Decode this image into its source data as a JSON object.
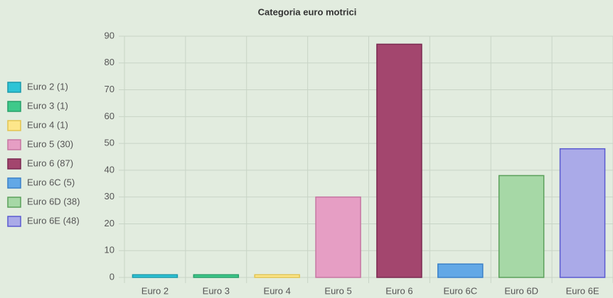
{
  "chart_data": {
    "type": "bar",
    "title": "Categoria euro motrici",
    "categories": [
      "Euro 2",
      "Euro 3",
      "Euro 4",
      "Euro 5",
      "Euro 6",
      "Euro 6C",
      "Euro 6D",
      "Euro 6E"
    ],
    "values": [
      1,
      1,
      1,
      30,
      87,
      5,
      38,
      48
    ],
    "legend_labels": [
      "Euro 2 (1)",
      "Euro 3 (1)",
      "Euro 4 (1)",
      "Euro 5 (30)",
      "Euro 6 (87)",
      "Euro 6C (5)",
      "Euro 6D (38)",
      "Euro 6E (48)"
    ],
    "colors": [
      "#2ec4d6",
      "#3ec98a",
      "#fde68a",
      "#e69ec4",
      "#a3466e",
      "#62a8e6",
      "#a6d8a6",
      "#aaaae8"
    ],
    "border_colors": [
      "#1a9aab",
      "#27a06a",
      "#e2c450",
      "#c676a2",
      "#7a2850",
      "#3a80c8",
      "#5aa05a",
      "#5a5ad0"
    ],
    "ylim": [
      0,
      90
    ],
    "yticks": [
      0,
      10,
      20,
      30,
      40,
      50,
      60,
      70,
      80,
      90
    ],
    "grid": true,
    "legend": "left"
  }
}
